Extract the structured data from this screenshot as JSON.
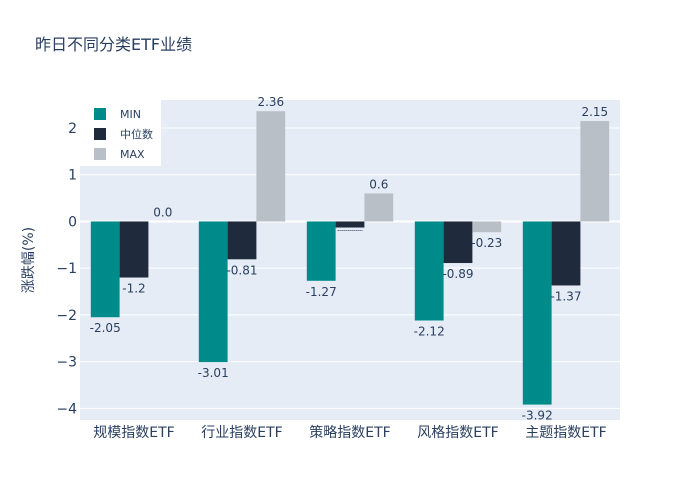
{
  "chart_data": {
    "type": "bar",
    "title": "昨日不同分类ETF业绩",
    "ylabel": "涨跌幅(%)",
    "xlabel": "",
    "categories": [
      "规模指数ETF",
      "行业指数ETF",
      "策略指数ETF",
      "风格指数ETF",
      "主题指数ETF"
    ],
    "series": [
      {
        "name": "MIN",
        "color": "#008b8b",
        "values": [
          -2.05,
          -3.01,
          -1.27,
          -2.12,
          -3.92
        ],
        "labels": [
          "-2.05",
          "-3.01",
          "-1.27",
          "-2.12",
          "-3.92"
        ]
      },
      {
        "name": "中位数",
        "color": "#1f2a3c",
        "values": [
          -1.2,
          -0.81,
          -0.13,
          -0.89,
          -1.37
        ],
        "labels": [
          "-1.2",
          "-0.81",
          "",
          "-0.89",
          "-1.37"
        ]
      },
      {
        "name": "MAX",
        "color": "#b8bfc7",
        "values": [
          0.0,
          2.36,
          0.6,
          -0.23,
          2.15
        ],
        "labels": [
          "0.0",
          "2.36",
          "0.6",
          "-0.23",
          "2.15"
        ]
      }
    ],
    "ylim": [
      -4.25,
      2.6
    ],
    "yticks": [
      -4,
      -3,
      -2,
      -1,
      0,
      1,
      2
    ],
    "ytick_labels": [
      "−4",
      "−3",
      "−2",
      "−1",
      "0",
      "1",
      "2"
    ],
    "grid": true,
    "legend": "top-left",
    "plot_bg": "#e5ecf6"
  }
}
